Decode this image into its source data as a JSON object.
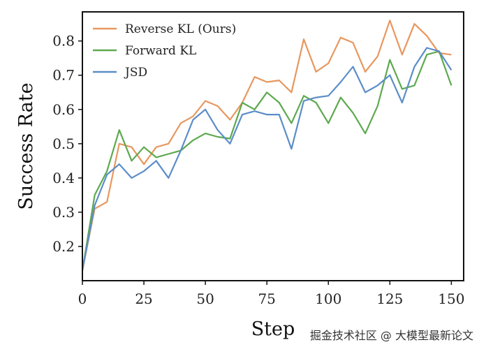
{
  "chart_data": {
    "type": "line",
    "title": "",
    "xlabel": "Step",
    "ylabel": "Success Rate",
    "xlim": [
      0,
      155
    ],
    "ylim": [
      0.1,
      0.885
    ],
    "xticks": [
      0,
      25,
      50,
      75,
      100,
      125,
      150
    ],
    "yticks": [
      0.2,
      0.3,
      0.4,
      0.5,
      0.6,
      0.7,
      0.8
    ],
    "grid": false,
    "legend": "top-left",
    "series": [
      {
        "name": "Reverse KL (Ours)",
        "color": "#E8975F",
        "x": [
          0,
          5,
          10,
          15,
          20,
          25,
          30,
          35,
          40,
          45,
          50,
          55,
          60,
          65,
          70,
          75,
          80,
          85,
          90,
          95,
          100,
          105,
          110,
          115,
          120,
          125,
          130,
          135,
          140,
          145,
          150
        ],
        "y": [
          0.13,
          0.31,
          0.33,
          0.5,
          0.49,
          0.44,
          0.49,
          0.5,
          0.56,
          0.58,
          0.625,
          0.61,
          0.57,
          0.62,
          0.695,
          0.68,
          0.685,
          0.65,
          0.805,
          0.71,
          0.735,
          0.81,
          0.795,
          0.71,
          0.755,
          0.86,
          0.76,
          0.85,
          0.815,
          0.765,
          0.76
        ]
      },
      {
        "name": "Forward KL",
        "color": "#5DA94F",
        "x": [
          0,
          5,
          10,
          15,
          20,
          25,
          30,
          35,
          40,
          45,
          50,
          55,
          60,
          65,
          70,
          75,
          80,
          85,
          90,
          95,
          100,
          105,
          110,
          115,
          120,
          125,
          130,
          135,
          140,
          145,
          150
        ],
        "y": [
          0.13,
          0.35,
          0.42,
          0.54,
          0.45,
          0.49,
          0.46,
          0.47,
          0.48,
          0.51,
          0.53,
          0.52,
          0.515,
          0.62,
          0.6,
          0.65,
          0.62,
          0.56,
          0.64,
          0.62,
          0.56,
          0.635,
          0.59,
          0.53,
          0.61,
          0.745,
          0.66,
          0.67,
          0.76,
          0.77,
          0.67
        ]
      },
      {
        "name": "JSD",
        "color": "#5B8DC8",
        "x": [
          0,
          5,
          10,
          15,
          20,
          25,
          30,
          35,
          40,
          45,
          50,
          55,
          60,
          65,
          70,
          75,
          80,
          85,
          90,
          95,
          100,
          105,
          110,
          115,
          120,
          125,
          130,
          135,
          140,
          145,
          150
        ],
        "y": [
          0.13,
          0.32,
          0.41,
          0.44,
          0.4,
          0.42,
          0.45,
          0.4,
          0.48,
          0.57,
          0.6,
          0.54,
          0.5,
          0.585,
          0.595,
          0.585,
          0.585,
          0.485,
          0.625,
          0.635,
          0.64,
          0.68,
          0.725,
          0.65,
          0.67,
          0.7,
          0.62,
          0.725,
          0.78,
          0.77,
          0.715
        ]
      }
    ]
  },
  "watermark": "掘金技术社区 @ 大模型最新论文"
}
